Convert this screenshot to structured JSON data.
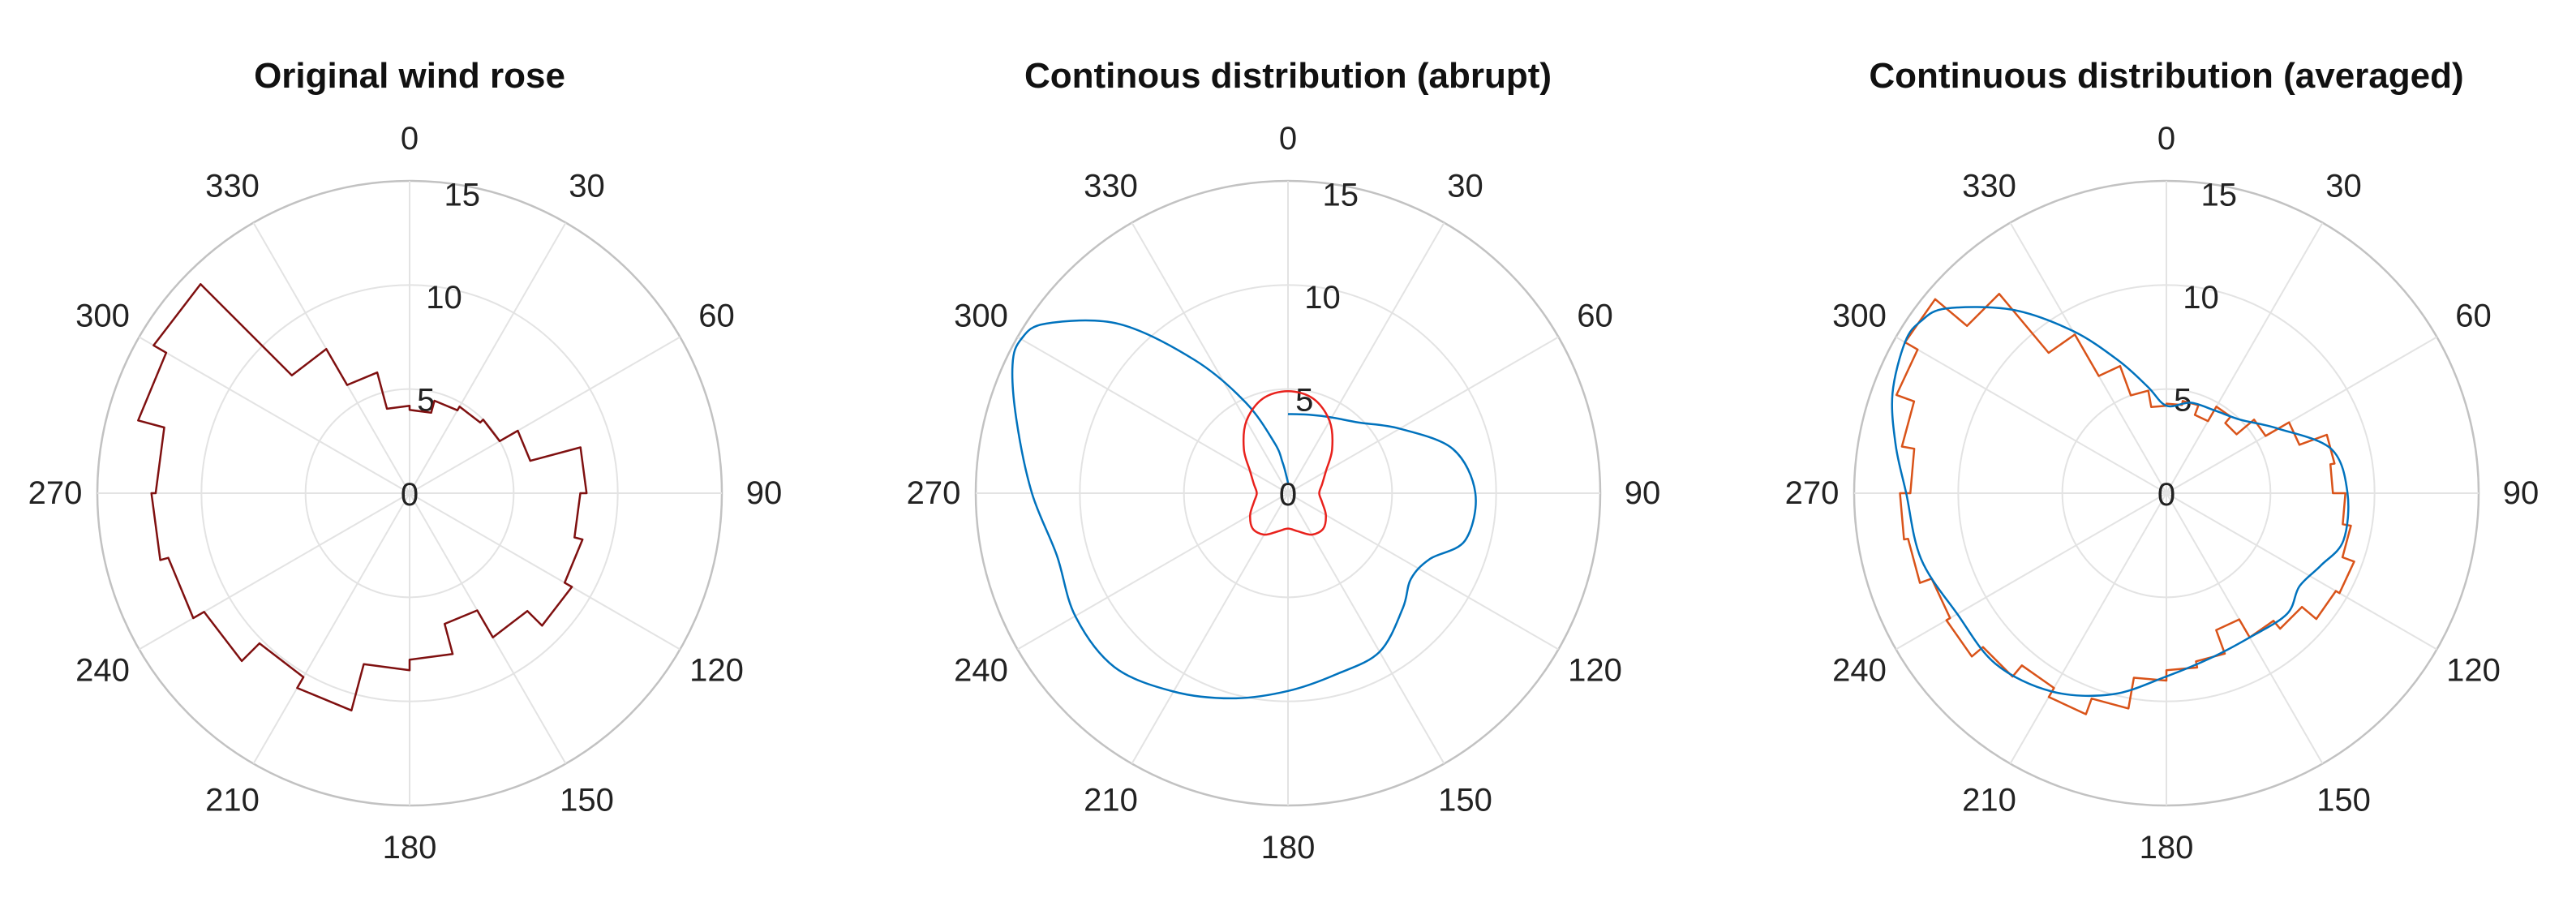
{
  "chart_data": [
    {
      "type": "polar",
      "title": "Original wind rose",
      "angle_ticks": [
        "0",
        "30",
        "60",
        "90",
        "120",
        "150",
        "180",
        "210",
        "240",
        "270",
        "300",
        "330"
      ],
      "radial_ticks": [
        "0",
        "5",
        "10",
        "15"
      ],
      "rlim": [
        0,
        15
      ],
      "direction": "clockwise",
      "zero_location": "top",
      "grid": true,
      "series": [
        {
          "style": "step",
          "color": "#7f1010",
          "bin_width_deg": 15,
          "bin_starts_deg": [
            0,
            15,
            30,
            45,
            60,
            75,
            90,
            105,
            120,
            135,
            150,
            165,
            180,
            195,
            210,
            225,
            240,
            255,
            270,
            285,
            300,
            315,
            330,
            345
          ],
          "values": [
            4.0,
            4.6,
            4.8,
            5.0,
            6.0,
            8.5,
            8.2,
            8.6,
            9.0,
            8.0,
            6.5,
            8.0,
            8.5,
            10.8,
            10.2,
            11.4,
            12.0,
            12.4,
            12.2,
            13.5,
            14.2,
            8.0,
            6.0,
            4.2
          ]
        }
      ]
    },
    {
      "type": "polar",
      "title": "Continous distribution (abrupt)",
      "angle_ticks": [
        "0",
        "30",
        "60",
        "90",
        "120",
        "150",
        "180",
        "210",
        "240",
        "270",
        "300",
        "330"
      ],
      "radial_ticks": [
        "0",
        "5",
        "10",
        "15"
      ],
      "rlim": [
        0,
        15
      ],
      "direction": "clockwise",
      "zero_location": "top",
      "grid": true,
      "series": [
        {
          "style": "line",
          "color": "#0072bd",
          "theta_deg": [
            0,
            15,
            30,
            45,
            60,
            75,
            90,
            105,
            115,
            125,
            135,
            150,
            165,
            180,
            195,
            210,
            225,
            240,
            255,
            270,
            285,
            295,
            300,
            305,
            315,
            325,
            335,
            345,
            350,
            355,
            360
          ],
          "r": [
            3.8,
            3.9,
            4.2,
            4.8,
            6.2,
            8.2,
            9.0,
            8.8,
            7.5,
            7.2,
            7.8,
            8.8,
            9.0,
            9.5,
            10.2,
            11.0,
            11.8,
            11.8,
            11.5,
            12.3,
            13.5,
            14.6,
            14.8,
            14.2,
            11.5,
            7.8,
            4.8,
            2.5,
            1.5,
            0.8,
            0.5
          ]
        },
        {
          "style": "line",
          "color": "#e8211c",
          "theta_deg": [
            0,
            15,
            30,
            45,
            60,
            75,
            90,
            105,
            120,
            135,
            150,
            165,
            180,
            195,
            210,
            225,
            240,
            255,
            270,
            285,
            300,
            315,
            330,
            345,
            360
          ],
          "r": [
            4.9,
            4.7,
            4.0,
            3.0,
            2.1,
            1.7,
            1.5,
            1.7,
            2.1,
            2.4,
            2.3,
            1.9,
            1.7,
            1.9,
            2.3,
            2.4,
            2.1,
            1.7,
            1.5,
            1.7,
            2.1,
            3.0,
            4.0,
            4.7,
            4.9
          ]
        }
      ]
    },
    {
      "type": "polar",
      "title": "Continuous distribution (averaged)",
      "angle_ticks": [
        "0",
        "30",
        "60",
        "90",
        "120",
        "150",
        "180",
        "210",
        "240",
        "270",
        "300",
        "330"
      ],
      "radial_ticks": [
        "0",
        "5",
        "10",
        "15"
      ],
      "rlim": [
        0,
        15
      ],
      "direction": "clockwise",
      "zero_location": "top",
      "grid": true,
      "series": [
        {
          "style": "step",
          "color": "#d95319",
          "bin_width_deg": 10,
          "bin_starts_deg": [
            0,
            10,
            20,
            30,
            40,
            50,
            60,
            70,
            80,
            90,
            100,
            110,
            120,
            130,
            140,
            150,
            160,
            170,
            180,
            190,
            200,
            210,
            220,
            230,
            240,
            250,
            260,
            270,
            280,
            290,
            300,
            310,
            320,
            330,
            340,
            350
          ],
          "values": [
            4.3,
            4.5,
            4.0,
            4.8,
            4.4,
            5.5,
            6.8,
            8.2,
            8.0,
            8.6,
            9.0,
            9.6,
            9.4,
            8.5,
            8.0,
            7.0,
            8.2,
            8.5,
            9.0,
            10.5,
            11.3,
            10.8,
            11.5,
            12.2,
            12.0,
            12.6,
            12.8,
            12.3,
            12.9,
            13.8,
            14.5,
            12.5,
            8.8,
            6.5,
            5.0,
            4.2
          ]
        },
        {
          "style": "line",
          "color": "#0072bd",
          "theta_deg": [
            0,
            15,
            30,
            45,
            60,
            75,
            90,
            105,
            115,
            125,
            135,
            150,
            165,
            180,
            195,
            210,
            225,
            240,
            255,
            270,
            280,
            290,
            300,
            305,
            310,
            320,
            330,
            340,
            350,
            360
          ],
          "r": [
            4.2,
            4.5,
            4.6,
            5.0,
            6.2,
            8.2,
            8.7,
            8.8,
            8.2,
            7.8,
            8.2,
            8.0,
            8.2,
            8.8,
            10.0,
            11.0,
            11.6,
            11.6,
            12.2,
            12.5,
            13.2,
            14.0,
            14.5,
            14.4,
            13.8,
            11.5,
            9.0,
            6.8,
            5.2,
            4.2
          ]
        }
      ]
    }
  ]
}
